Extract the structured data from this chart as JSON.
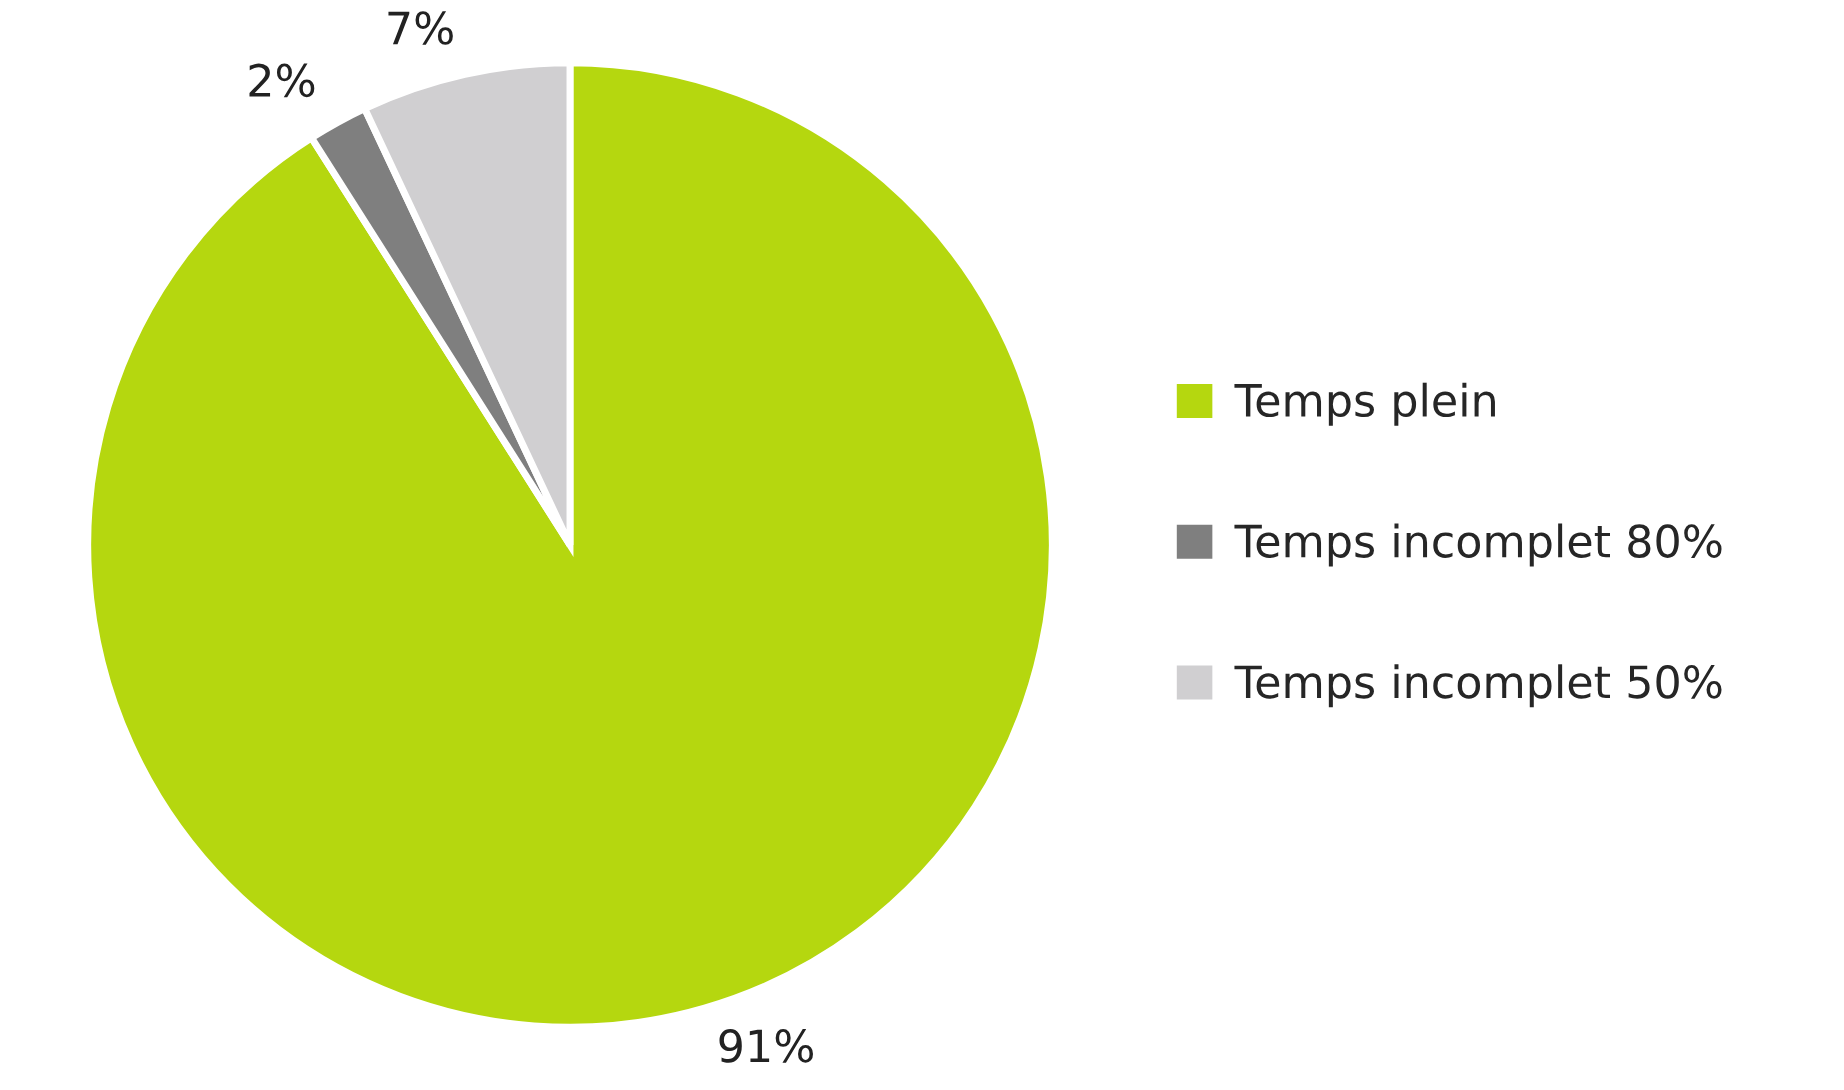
{
  "chart_data": {
    "type": "pie",
    "categories": [
      "Temps plein",
      "Temps incomplet 80%",
      "Temps incomplet 50%"
    ],
    "values": [
      91,
      2,
      7
    ],
    "value_labels": [
      "91%",
      "2%",
      "7%"
    ],
    "colors": [
      "#b5d70f",
      "#7f7f7f",
      "#d0cfd1"
    ],
    "legend": "right"
  }
}
